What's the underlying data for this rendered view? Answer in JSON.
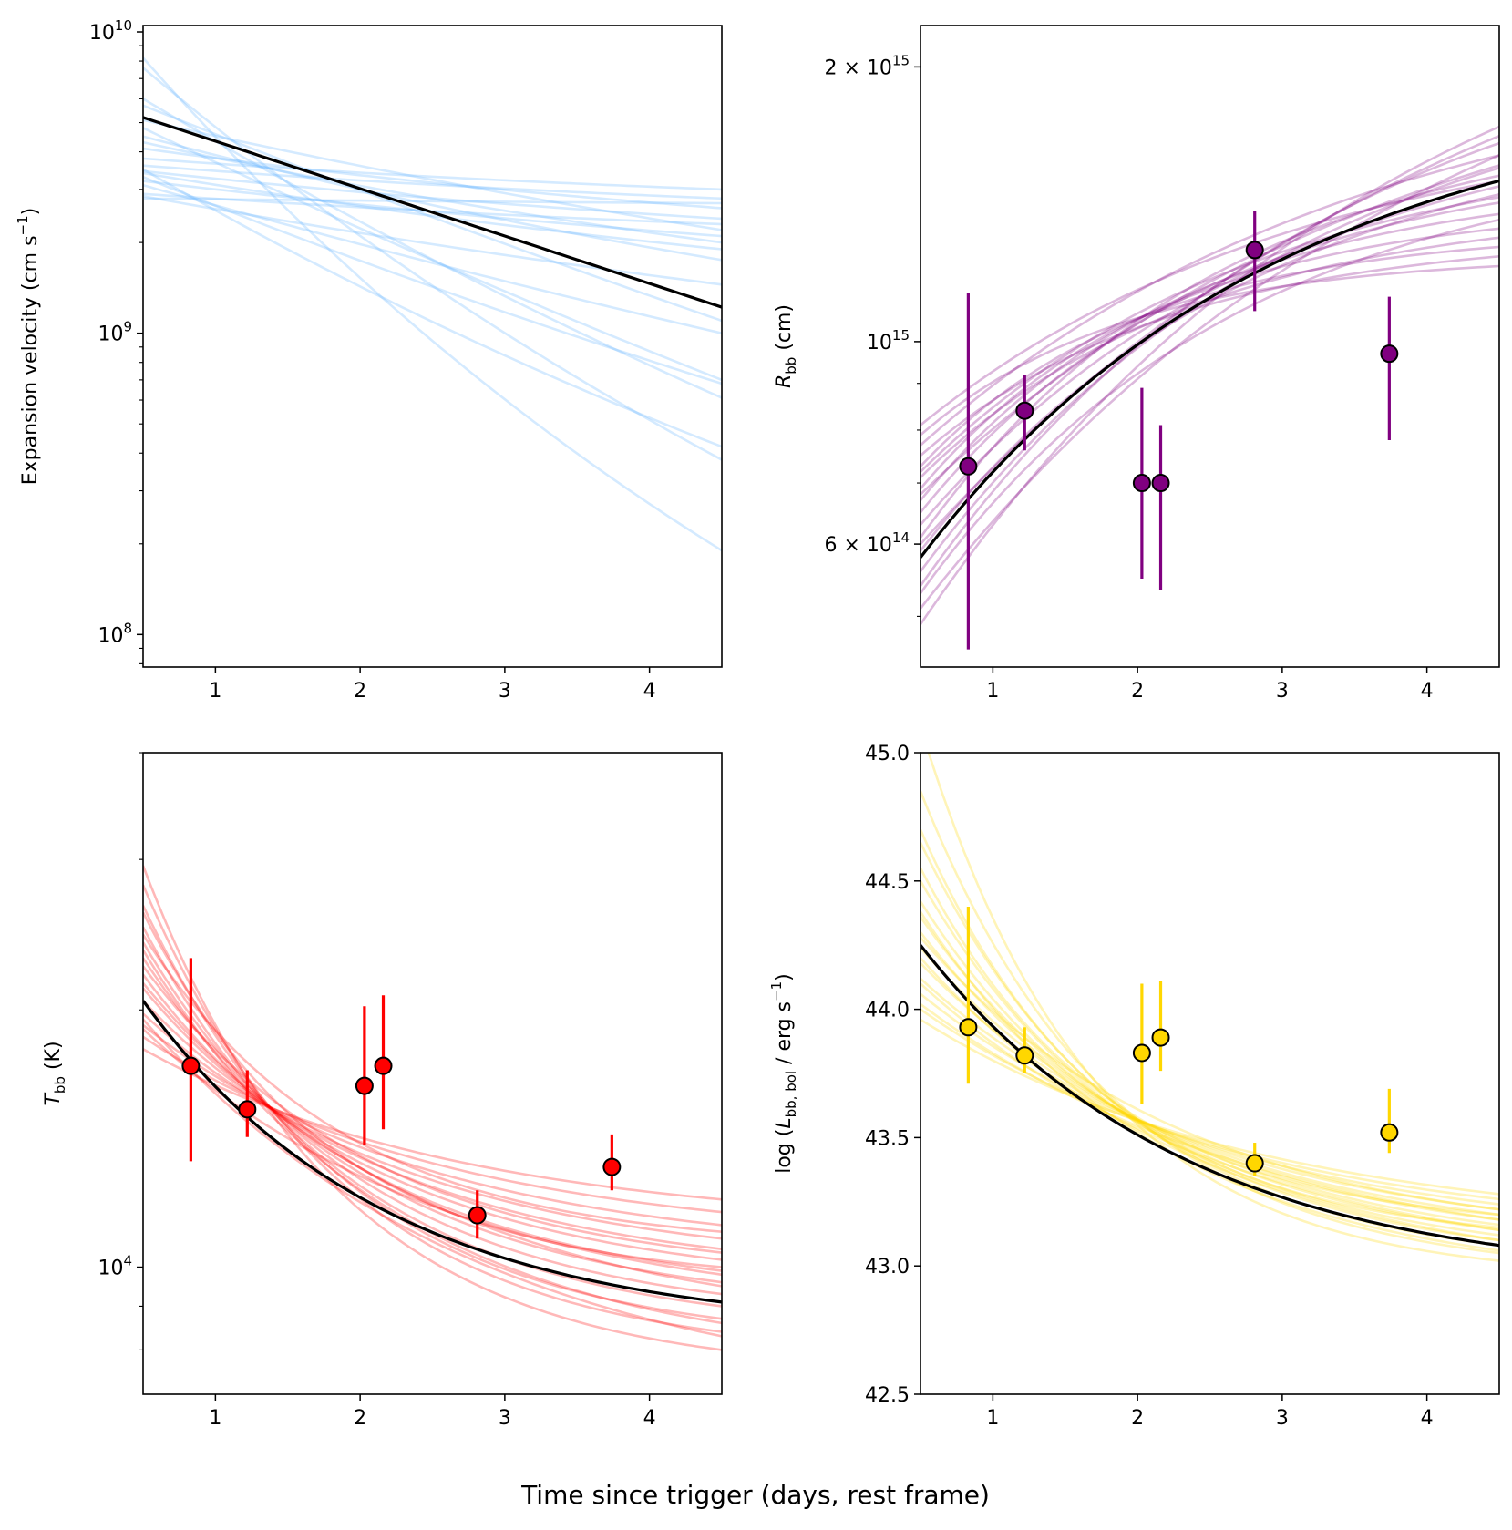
{
  "figure": {
    "common_xlabel": "Time since trigger (days, rest frame)",
    "band_colors": {
      "velocity": "#66b2ff",
      "radius": "#800080",
      "temperature": "#ff0000",
      "luminosity": "#ffd700"
    },
    "best_fit_color": "#000000",
    "samples_per_panel": 20
  },
  "chart_data": [
    {
      "id": "velocity",
      "type": "line",
      "yscale": "log",
      "ylabel_text": "Expansion velocity (cm s",
      "ylabel_sup": "−1",
      "ylabel_end": ")",
      "xlim": [
        0.5,
        4.5
      ],
      "ylim": [
        78000000.0,
        10500000000.0
      ],
      "xticks": [
        1,
        2,
        3,
        4
      ],
      "xtick_labels": [
        "1",
        "2",
        "3",
        "4"
      ],
      "ytick_labels": [
        {
          "value": 100000000.0,
          "base": "10",
          "exp": "8"
        },
        {
          "value": 1000000000.0,
          "base": "10",
          "exp": "9"
        },
        {
          "value": 10000000000.0,
          "base": "10",
          "exp": "10"
        }
      ],
      "best_fit": {
        "start": 5200000000.0,
        "end": 1220000000.0
      },
      "samples": [
        {
          "start": 8200000000.0,
          "end": 190000000.0,
          "curve": 0.6
        },
        {
          "start": 7600000000.0,
          "end": 380000000.0,
          "curve": 0.45
        },
        {
          "start": 6000000000.0,
          "end": 610000000.0,
          "curve": 0.3
        },
        {
          "start": 5700000000.0,
          "end": 1100000000.0,
          "curve": 0.15
        },
        {
          "start": 5100000000.0,
          "end": 2200000000.0,
          "curve": 0.35
        },
        {
          "start": 4800000000.0,
          "end": 700000000.0,
          "curve": 0.2
        },
        {
          "start": 4500000000.0,
          "end": 1750000000.0,
          "curve": 0.45
        },
        {
          "start": 4300000000.0,
          "end": 2000000000.0,
          "curve": 0.5
        },
        {
          "start": 4100000000.0,
          "end": 2600000000.0,
          "curve": 0.6
        },
        {
          "start": 3800000000.0,
          "end": 3000000000.0,
          "curve": 0.7
        },
        {
          "start": 3600000000.0,
          "end": 2800000000.0,
          "curve": 0.65
        },
        {
          "start": 3500000000.0,
          "end": 420000000.0,
          "curve": 0.4
        },
        {
          "start": 3450000000.0,
          "end": 2400000000.0,
          "curve": 0.55
        },
        {
          "start": 3400000000.0,
          "end": 1900000000.0,
          "curve": 0.5
        },
        {
          "start": 3300000000.0,
          "end": 680000000.0,
          "curve": 0.25
        },
        {
          "start": 3200000000.0,
          "end": 2100000000.0,
          "curve": 0.45
        },
        {
          "start": 3100000000.0,
          "end": 1000000000.0,
          "curve": 0.2
        },
        {
          "start": 2900000000.0,
          "end": 2300000000.0,
          "curve": 0.55
        },
        {
          "start": 2850000000.0,
          "end": 1450000000.0,
          "curve": 0.35
        },
        {
          "start": 2800000000.0,
          "end": 2700000000.0,
          "curve": 0.6
        }
      ],
      "points": []
    },
    {
      "id": "radius",
      "type": "line",
      "yscale": "log",
      "ylabel_text": "R",
      "ylabel_sub": "bb",
      "ylabel_end": " (cm)",
      "xlim": [
        0.5,
        4.5
      ],
      "ylim": [
        440000000000000.0,
        2220000000000000.0
      ],
      "xticks": [
        1,
        2,
        3,
        4
      ],
      "xtick_labels": [
        "1",
        "2",
        "3",
        "4"
      ],
      "ytick_labels": [
        {
          "value": 600000000000000.0,
          "base": "6 × 10",
          "exp": "14"
        },
        {
          "value": 1000000000000000.0,
          "base": "10",
          "exp": "15"
        },
        {
          "value": 2000000000000000.0,
          "base": "2 × 10",
          "exp": "15"
        }
      ],
      "best_fit": {
        "start": 580000000000000.0,
        "end": 1500000000000000.0,
        "curve": 1.6
      },
      "samples": [
        {
          "start": 490000000000000.0,
          "end": 1720000000000000.0,
          "curve": 1.2
        },
        {
          "start": 510000000000000.0,
          "end": 1600000000000000.0,
          "curve": 1.1
        },
        {
          "start": 540000000000000.0,
          "end": 1650000000000000.0,
          "curve": 1.4
        },
        {
          "start": 560000000000000.0,
          "end": 1550000000000000.0,
          "curve": 1.5
        },
        {
          "start": 590000000000000.0,
          "end": 1450000000000000.0,
          "curve": 1.7
        },
        {
          "start": 610000000000000.0,
          "end": 1520000000000000.0,
          "curve": 1.9
        },
        {
          "start": 630000000000000.0,
          "end": 1480000000000000.0,
          "curve": 1.6
        },
        {
          "start": 650000000000000.0,
          "end": 1420000000000000.0,
          "curve": 2.0
        },
        {
          "start": 670000000000000.0,
          "end": 1380000000000000.0,
          "curve": 2.2
        },
        {
          "start": 690000000000000.0,
          "end": 1330000000000000.0,
          "curve": 2.4
        },
        {
          "start": 710000000000000.0,
          "end": 1300000000000000.0,
          "curve": 2.1
        },
        {
          "start": 730000000000000.0,
          "end": 1270000000000000.0,
          "curve": 2.6
        },
        {
          "start": 750000000000000.0,
          "end": 1240000000000000.0,
          "curve": 2.3
        },
        {
          "start": 770000000000000.0,
          "end": 1600000000000000.0,
          "curve": 1.3
        },
        {
          "start": 790000000000000.0,
          "end": 1210000000000000.0,
          "curve": 2.8
        },
        {
          "start": 810000000000000.0,
          "end": 1500000000000000.0,
          "curve": 1.5
        },
        {
          "start": 600000000000000.0,
          "end": 1680000000000000.0,
          "curve": 1.0
        },
        {
          "start": 530000000000000.0,
          "end": 1360000000000000.0,
          "curve": 1.8
        },
        {
          "start": 680000000000000.0,
          "end": 1560000000000000.0,
          "curve": 1.2
        },
        {
          "start": 720000000000000.0,
          "end": 1440000000000000.0,
          "curve": 1.7
        }
      ],
      "points": [
        {
          "x": 0.83,
          "y": 730000000000000.0,
          "lo": 460000000000000.0,
          "hi": 1130000000000000.0
        },
        {
          "x": 1.22,
          "y": 840000000000000.0,
          "lo": 760000000000000.0,
          "hi": 920000000000000.0
        },
        {
          "x": 2.03,
          "y": 700000000000000.0,
          "lo": 550000000000000.0,
          "hi": 890000000000000.0
        },
        {
          "x": 2.16,
          "y": 700000000000000.0,
          "lo": 535000000000000.0,
          "hi": 810000000000000.0
        },
        {
          "x": 2.81,
          "y": 1260000000000000.0,
          "lo": 1080000000000000.0,
          "hi": 1390000000000000.0
        },
        {
          "x": 3.74,
          "y": 970000000000000.0,
          "lo": 780000000000000.0,
          "hi": 1120000000000000.0
        }
      ]
    },
    {
      "id": "temperature",
      "type": "line",
      "yscale": "log",
      "ylabel_text": "T",
      "ylabel_sub": "bb",
      "ylabel_end": " (K)",
      "xlim": [
        0.5,
        4.5
      ],
      "ylim": [
        7100.0,
        40000.0
      ],
      "xticks": [
        1,
        2,
        3,
        4
      ],
      "xtick_labels": [
        "1",
        "2",
        "3",
        "4"
      ],
      "ytick_labels": [
        {
          "value": 10000.0,
          "base": "10",
          "exp": "4"
        }
      ],
      "best_fit": {
        "start": 20500.0,
        "end": 9100.0,
        "curve": 2.4
      },
      "samples": [
        {
          "start": 29500.0,
          "end": 8000.0,
          "curve": 3.0
        },
        {
          "start": 28000.0,
          "end": 8400.0,
          "curve": 2.9
        },
        {
          "start": 26500.0,
          "end": 8700.0,
          "curve": 2.8
        },
        {
          "start": 25000.0,
          "end": 9000.0,
          "curve": 2.7
        },
        {
          "start": 24000.0,
          "end": 9300.0,
          "curve": 2.6
        },
        {
          "start": 23000.0,
          "end": 9600.0,
          "curve": 2.5
        },
        {
          "start": 22000.0,
          "end": 9900.0,
          "curve": 2.4
        },
        {
          "start": 21200.0,
          "end": 10200.0,
          "curve": 2.3
        },
        {
          "start": 20500.0,
          "end": 10500.0,
          "curve": 2.2
        },
        {
          "start": 19800.0,
          "end": 10800.0,
          "curve": 2.1
        },
        {
          "start": 19200.0,
          "end": 11200.0,
          "curve": 2.0
        },
        {
          "start": 18600.0,
          "end": 11600.0,
          "curve": 1.9
        },
        {
          "start": 18000.0,
          "end": 12000.0,
          "curve": 1.8
        },
        {
          "start": 26000.0,
          "end": 10000.0,
          "curve": 3.1
        },
        {
          "start": 23500.0,
          "end": 8600.0,
          "curve": 2.3
        },
        {
          "start": 21500.0,
          "end": 9500.0,
          "curve": 2.0
        },
        {
          "start": 19500.0,
          "end": 8300.0,
          "curve": 1.7
        },
        {
          "start": 24500.0,
          "end": 11000.0,
          "curve": 2.9
        },
        {
          "start": 19000.0,
          "end": 9800.0,
          "curve": 1.9
        },
        {
          "start": 22500.0,
          "end": 10400.0,
          "curve": 2.5
        }
      ],
      "points": [
        {
          "x": 0.83,
          "y": 17200.0,
          "lo": 13300.0,
          "hi": 23000.0
        },
        {
          "x": 1.22,
          "y": 15300.0,
          "lo": 14200.0,
          "hi": 17000.0
        },
        {
          "x": 2.03,
          "y": 16300.0,
          "lo": 13900.0,
          "hi": 20200.0
        },
        {
          "x": 2.16,
          "y": 17200.0,
          "lo": 14500.0,
          "hi": 20800.0
        },
        {
          "x": 2.81,
          "y": 11500.0,
          "lo": 10800.0,
          "hi": 12300.0
        },
        {
          "x": 3.74,
          "y": 13100.0,
          "lo": 12300.0,
          "hi": 14300.0
        }
      ]
    },
    {
      "id": "luminosity",
      "type": "line",
      "yscale": "linear",
      "ylabel_text": "log (L",
      "ylabel_sub": "bb, bol",
      "ylabel_end": " / erg s",
      "ylabel_sup": "−1",
      "ylabel_close": ")",
      "xlim": [
        0.5,
        4.5
      ],
      "ylim": [
        42.5,
        45.0
      ],
      "xticks": [
        1,
        2,
        3,
        4
      ],
      "xtick_labels": [
        "1",
        "2",
        "3",
        "4"
      ],
      "yticks": [
        42.5,
        43.0,
        43.5,
        44.0,
        44.5,
        45.0
      ],
      "ytick_labels_text": [
        "42.5",
        "43.0",
        "43.5",
        "44.0",
        "44.5",
        "45.0"
      ],
      "best_fit": {
        "start": 44.25,
        "end": 43.08,
        "curve": 2.2
      },
      "samples": [
        {
          "start": 45.1,
          "end": 43.02,
          "curve": 3.4
        },
        {
          "start": 44.85,
          "end": 43.05,
          "curve": 3.0
        },
        {
          "start": 44.65,
          "end": 43.08,
          "curve": 2.8
        },
        {
          "start": 44.5,
          "end": 43.1,
          "curve": 2.6
        },
        {
          "start": 44.42,
          "end": 43.12,
          "curve": 2.5
        },
        {
          "start": 44.36,
          "end": 43.14,
          "curve": 2.4
        },
        {
          "start": 44.3,
          "end": 43.16,
          "curve": 2.3
        },
        {
          "start": 44.24,
          "end": 43.18,
          "curve": 2.2
        },
        {
          "start": 44.18,
          "end": 43.2,
          "curve": 2.1
        },
        {
          "start": 44.12,
          "end": 43.22,
          "curve": 2.0
        },
        {
          "start": 44.06,
          "end": 43.24,
          "curve": 1.9
        },
        {
          "start": 44.0,
          "end": 43.26,
          "curve": 1.8
        },
        {
          "start": 43.96,
          "end": 43.28,
          "curve": 1.7
        },
        {
          "start": 44.55,
          "end": 43.2,
          "curve": 3.1
        },
        {
          "start": 44.2,
          "end": 43.1,
          "curve": 2.0
        },
        {
          "start": 44.1,
          "end": 43.14,
          "curve": 1.8
        },
        {
          "start": 44.7,
          "end": 43.15,
          "curve": 3.2
        },
        {
          "start": 44.38,
          "end": 43.06,
          "curve": 2.4
        },
        {
          "start": 44.02,
          "end": 43.18,
          "curve": 1.6
        },
        {
          "start": 44.28,
          "end": 43.22,
          "curve": 2.2
        }
      ],
      "points": [
        {
          "x": 0.83,
          "y": 43.93,
          "lo": 43.71,
          "hi": 44.4
        },
        {
          "x": 1.22,
          "y": 43.82,
          "lo": 43.75,
          "hi": 43.93
        },
        {
          "x": 2.03,
          "y": 43.83,
          "lo": 43.63,
          "hi": 44.1
        },
        {
          "x": 2.16,
          "y": 43.89,
          "lo": 43.76,
          "hi": 44.11
        },
        {
          "x": 2.81,
          "y": 43.4,
          "lo": 43.35,
          "hi": 43.48
        },
        {
          "x": 3.74,
          "y": 43.52,
          "lo": 43.44,
          "hi": 43.69
        }
      ]
    }
  ]
}
